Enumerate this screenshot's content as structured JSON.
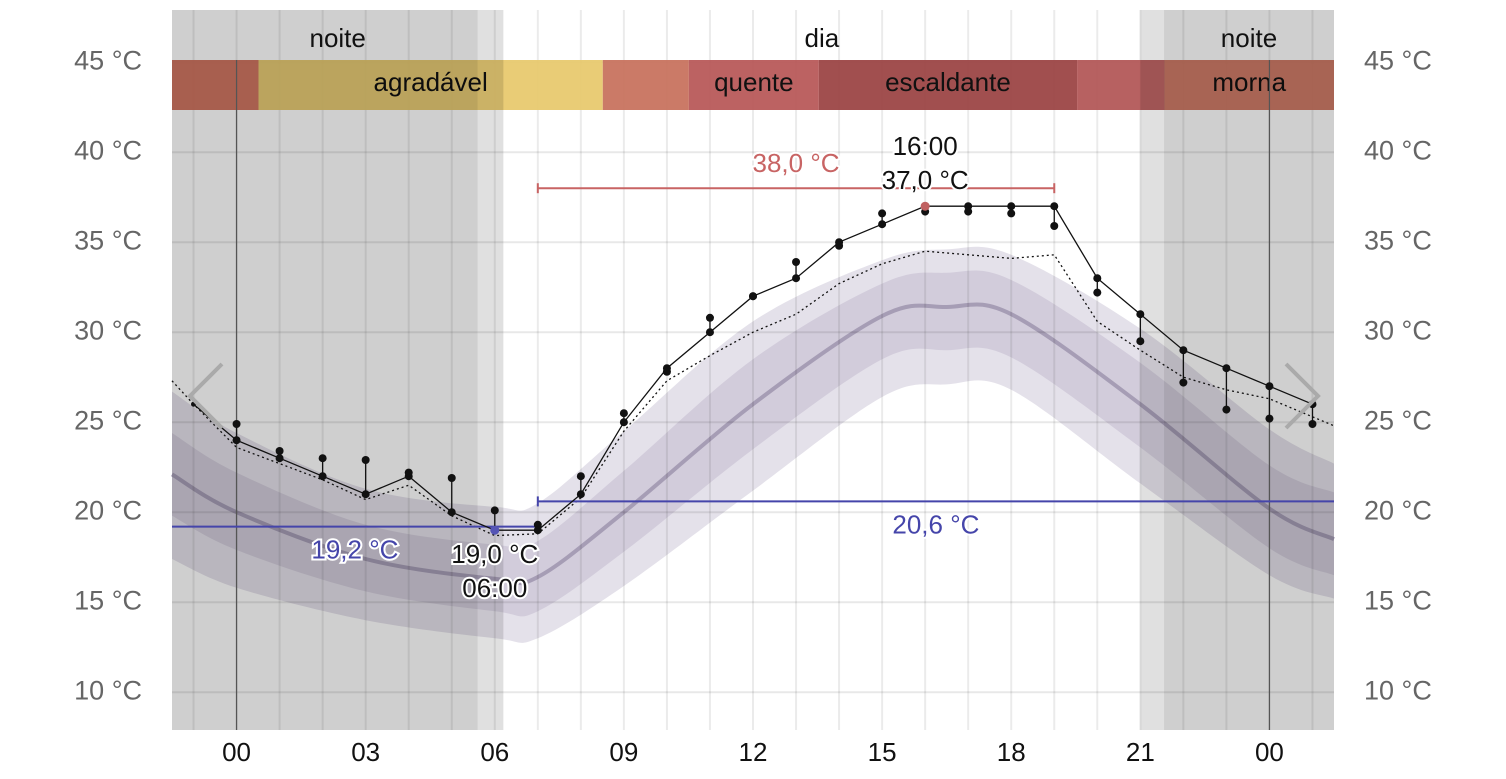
{
  "chart_data": {
    "type": "line",
    "xlim": [
      -1.5,
      25.5
    ],
    "ylim": [
      7.9,
      47.9
    ],
    "xticks": [
      {
        "value": 0,
        "label": "00"
      },
      {
        "value": 3,
        "label": "03"
      },
      {
        "value": 6,
        "label": "06"
      },
      {
        "value": 9,
        "label": "09"
      },
      12,
      15,
      18,
      21,
      {
        "value": 24,
        "label": "00"
      }
    ],
    "x_minor_ticks": [
      -1,
      0,
      1,
      2,
      3,
      4,
      5,
      6,
      7,
      8,
      9,
      10,
      11,
      12,
      13,
      14,
      15,
      16,
      17,
      18,
      19,
      20,
      21,
      22,
      23,
      24,
      25
    ],
    "midnight_lines": [
      0,
      24
    ],
    "yticks": [
      {
        "value": 10,
        "label": "10 °C"
      },
      {
        "value": 15,
        "label": "15 °C"
      },
      {
        "value": 20,
        "label": "20 °C"
      },
      {
        "value": 25,
        "label": "25 °C"
      },
      {
        "value": 30,
        "label": "30 °C"
      },
      {
        "value": 35,
        "label": "35 °C"
      },
      {
        "value": 40,
        "label": "40 °C"
      },
      {
        "value": 45,
        "label": "45 °C"
      }
    ],
    "grid": true,
    "periods": [
      {
        "label": "noite",
        "from": -1.5,
        "to": 6.2
      },
      {
        "label": "dia",
        "from": 6.2,
        "to": 21.0
      },
      {
        "label": "noite",
        "from": 21.55,
        "to": 25.5
      }
    ],
    "shades": [
      {
        "from": -1.5,
        "to": 5.6,
        "color": "rgba(0,0,0,0.19)"
      },
      {
        "from": 5.6,
        "to": 6.2,
        "color": "rgba(0,0,0,0.12)"
      },
      {
        "from": 21.0,
        "to": 21.55,
        "color": "rgba(0,0,0,0.12)"
      },
      {
        "from": 21.55,
        "to": 25.5,
        "color": "rgba(0,0,0,0.19)"
      }
    ],
    "comfort": [
      {
        "label": null,
        "from": -1.5,
        "to": 0.51,
        "color": "#cf705c"
      },
      {
        "label": "agradável",
        "from": 0.51,
        "to": 8.51,
        "color": "#e8c96f"
      },
      {
        "label": null,
        "from": 8.51,
        "to": 10.51,
        "color": "#c8735f"
      },
      {
        "label": "quente",
        "from": 10.51,
        "to": 13.53,
        "color": "#b85a5a"
      },
      {
        "label": "escaldante",
        "from": 13.53,
        "to": 19.53,
        "color": "#9c4646"
      },
      {
        "label": null,
        "from": 19.53,
        "to": 21.56,
        "color": "#b35858"
      },
      {
        "label": "morna",
        "from": 21.56,
        "to": 25.5,
        "color": "#cf7762"
      }
    ],
    "climate": {
      "x": [
        -1.5,
        0,
        3,
        6,
        7,
        9,
        12,
        15,
        16.5,
        18,
        21,
        24,
        25.5
      ],
      "mean": [
        22.1,
        20.0,
        17.4,
        16.3,
        16.4,
        20.0,
        26.0,
        30.9,
        31.4,
        31.0,
        26.0,
        20.2,
        18.5
      ],
      "inner_low": [
        19.8,
        17.9,
        15.6,
        14.5,
        14.5,
        17.8,
        23.5,
        28.5,
        29.0,
        28.6,
        23.6,
        18.0,
        16.5
      ],
      "inner_high": [
        24.4,
        22.2,
        19.3,
        18.2,
        18.4,
        22.3,
        28.5,
        32.7,
        33.3,
        32.9,
        28.3,
        22.6,
        21.1
      ],
      "outer_low": [
        17.4,
        15.8,
        14.0,
        13.0,
        13.0,
        15.9,
        21.2,
        26.4,
        27.1,
        26.8,
        21.6,
        16.5,
        15.2
      ],
      "outer_high": [
        26.7,
        24.4,
        21.3,
        20.3,
        20.5,
        24.5,
        30.6,
        34.0,
        34.6,
        34.3,
        30.2,
        24.6,
        22.7
      ]
    },
    "forecast": {
      "x": [
        -1.5,
        -1,
        0,
        1,
        2,
        3,
        4,
        5,
        6,
        7,
        8,
        9,
        10,
        11,
        12,
        13,
        14,
        15,
        16,
        17,
        18,
        19,
        20,
        21,
        22,
        23,
        24,
        25,
        25.5
      ],
      "values": [
        27.3,
        26.0,
        23.6,
        22.7,
        21.8,
        20.7,
        21.5,
        19.8,
        18.7,
        18.8,
        20.8,
        24.5,
        27.3,
        28.7,
        30.0,
        31.0,
        32.7,
        33.8,
        34.5,
        34.3,
        34.1,
        34.3,
        30.6,
        29.0,
        27.5,
        26.8,
        26.3,
        25.3,
        24.8
      ]
    },
    "observed": {
      "x": [
        -1,
        0,
        1,
        2,
        3,
        4,
        5,
        6,
        7,
        8,
        9,
        10,
        11,
        12,
        13,
        14,
        15,
        16,
        17,
        18,
        19,
        20,
        21,
        22,
        23,
        24,
        25
      ],
      "values": [
        26,
        24,
        23,
        22,
        21,
        22,
        20,
        19,
        19,
        21,
        25,
        28,
        30,
        32,
        33,
        35,
        36,
        37,
        37,
        37,
        37,
        33,
        31,
        29,
        28,
        27,
        26
      ],
      "alternate": [
        null,
        24.9,
        23.4,
        23.0,
        22.9,
        22.2,
        21.9,
        20.1,
        19.3,
        22.0,
        25.5,
        27.8,
        30.8,
        32.0,
        33.9,
        34.8,
        36.6,
        36.7,
        36.7,
        36.6,
        35.9,
        32.2,
        29.5,
        27.2,
        25.7,
        25.2,
        24.9
      ]
    },
    "ranges": [
      {
        "from": 7,
        "to": 19,
        "y": 38.0,
        "label": "38,0 °C",
        "color": "#c86464",
        "side": "above"
      },
      {
        "from": -1.5,
        "to": 7,
        "y": 19.2,
        "label": "19,2 °C",
        "color": "#4545aa",
        "side": "below"
      },
      {
        "from": 7,
        "to": 25.5,
        "y": 20.6,
        "label": "20,6 °C",
        "color": "#4545aa",
        "side": "below"
      }
    ],
    "max": {
      "x": 16,
      "y": 37.0,
      "time": "16:00",
      "label": "37,0 °C",
      "color": "#c06060"
    },
    "min": {
      "x": 6,
      "y": 19.0,
      "label": "19,0 °C",
      "time": "06:00",
      "color": "#5555b5"
    }
  }
}
